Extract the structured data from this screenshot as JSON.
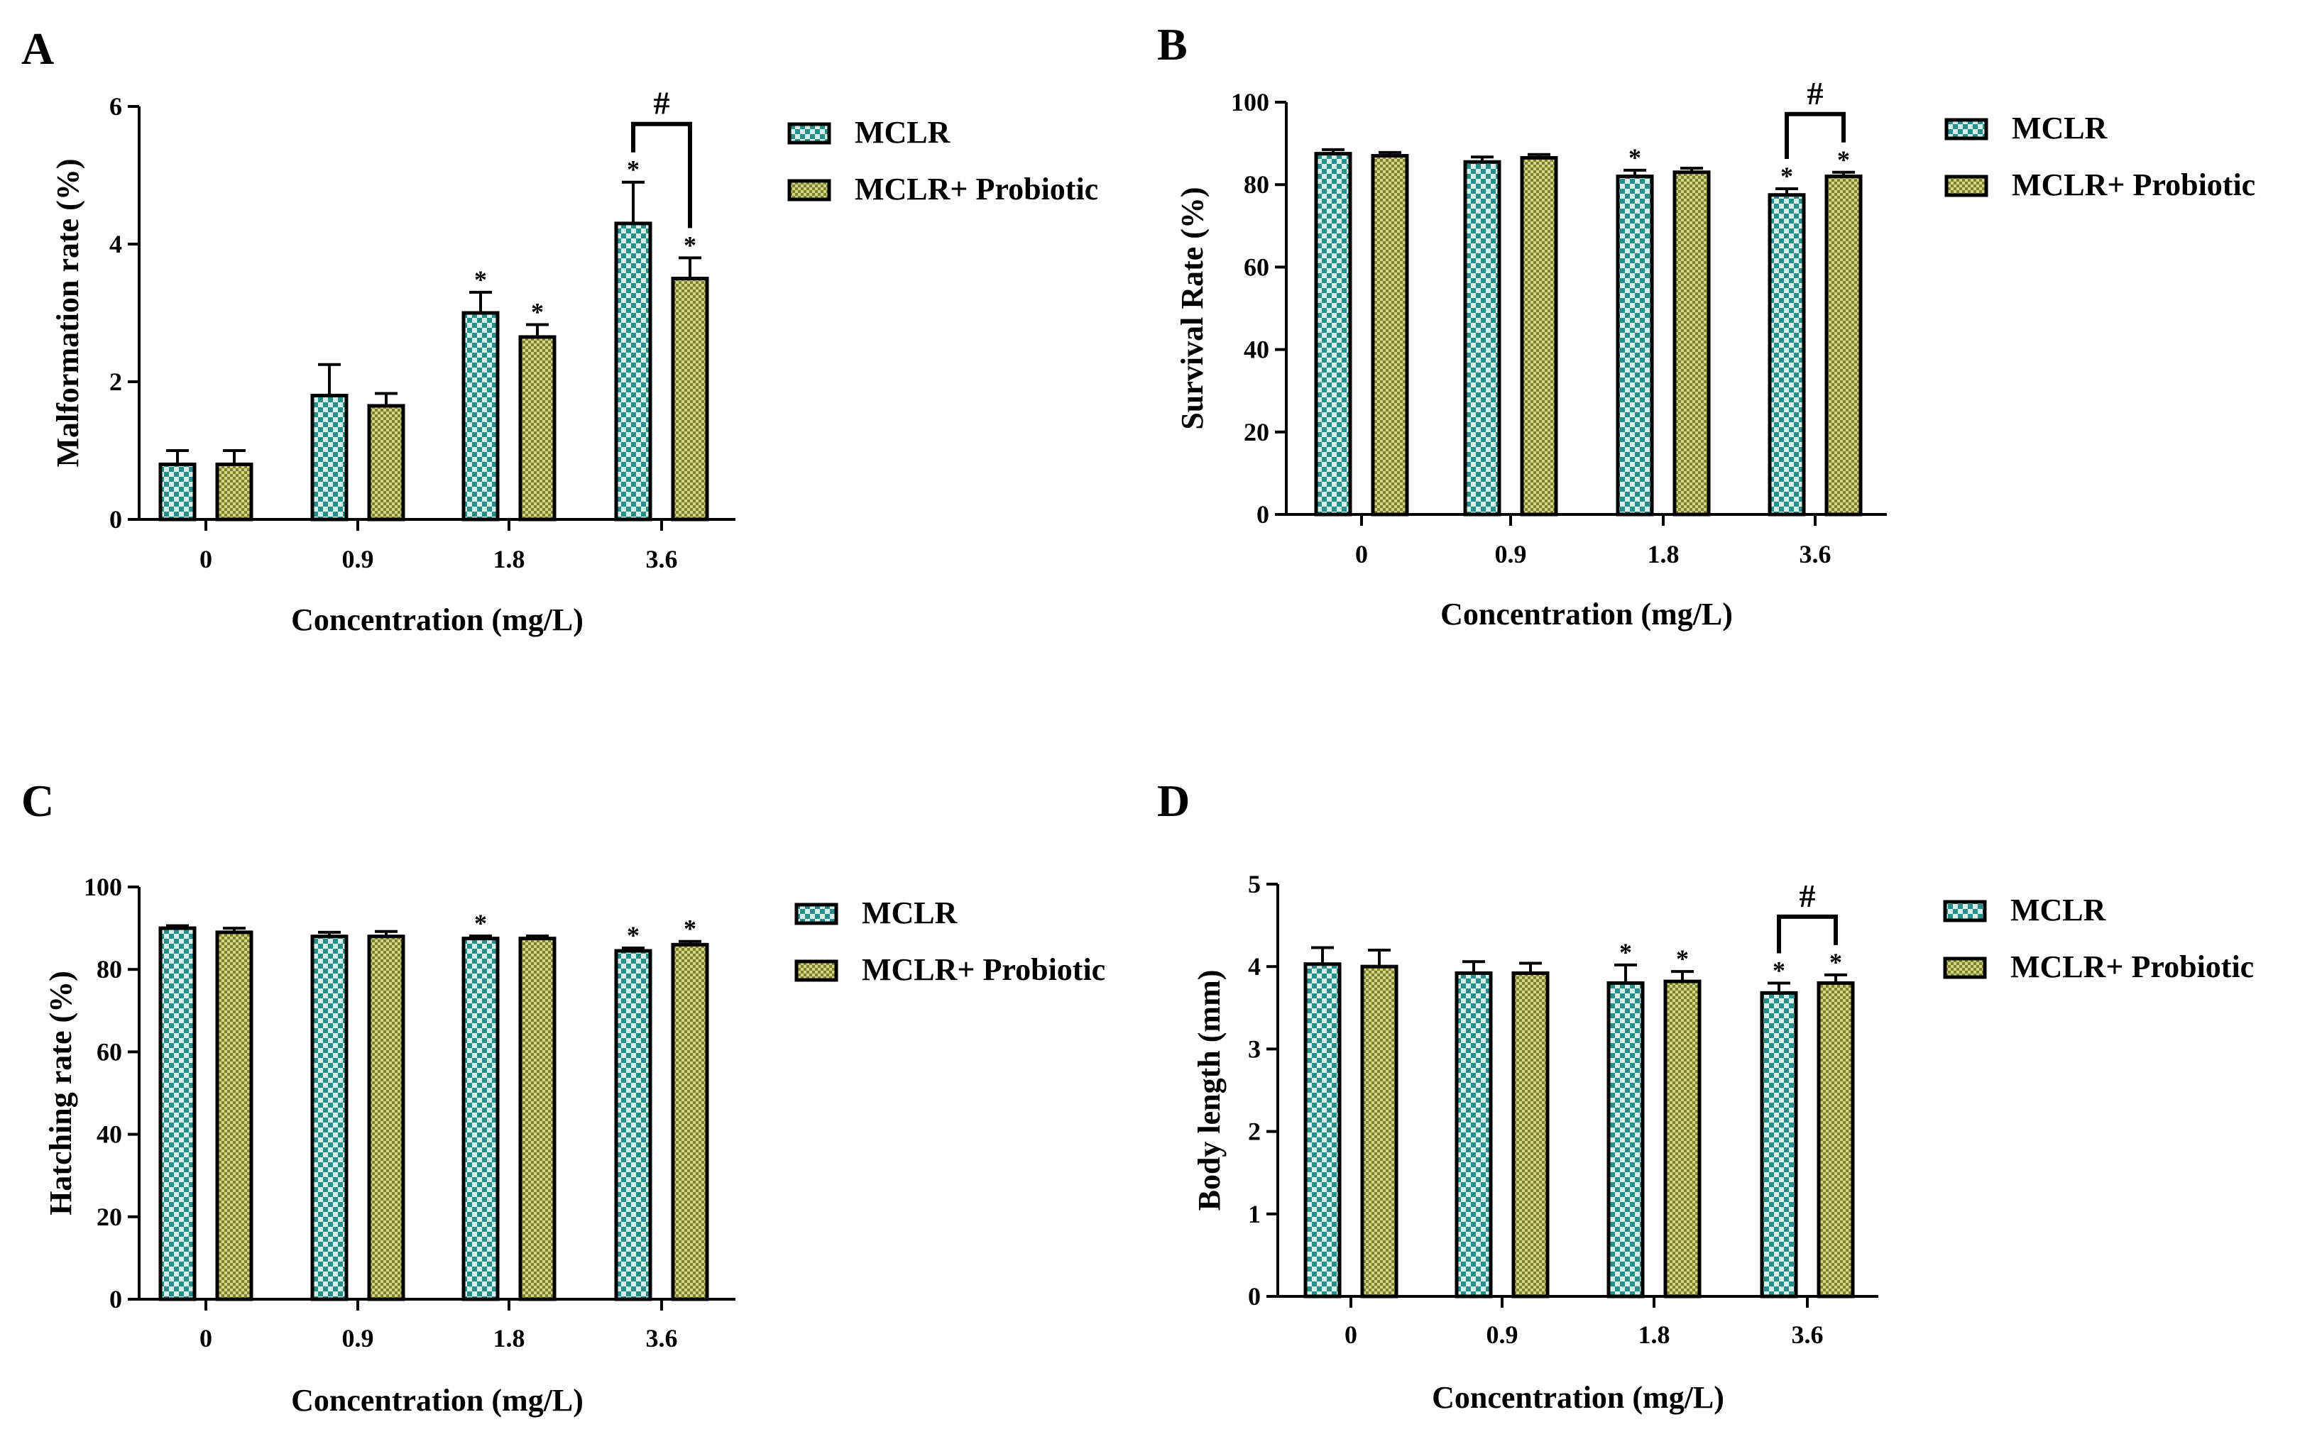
{
  "figure": {
    "colors": {
      "mclr_a": "#27908a",
      "mclr_b": "#d6f0ea",
      "pro_a": "#7f822c",
      "pro_b": "#d4d489",
      "ink": "#000000"
    },
    "icons": {
      "mclr": "teal-checker-swatch",
      "probiotic": "olive-checker-swatch"
    }
  },
  "chart_data": [
    {
      "type": "bar",
      "panel": "A",
      "title": "",
      "xlabel": "Concentration (mg/L)",
      "ylabel": "Malformation rate (%)",
      "ylim": [
        0,
        6
      ],
      "yticks": [
        0,
        2,
        4,
        6
      ],
      "categories": [
        "0",
        "0.9",
        "1.8",
        "3.6"
      ],
      "legend": [
        "MCLR",
        "MCLR+ Probiotic"
      ],
      "series": [
        {
          "name": "MCLR",
          "values": [
            0.8,
            1.8,
            3.0,
            4.3
          ],
          "errors": [
            0.2,
            0.45,
            0.3,
            0.6
          ],
          "sig": [
            "",
            "",
            "*",
            "*"
          ]
        },
        {
          "name": "MCLR+ Probiotic",
          "values": [
            0.8,
            1.65,
            2.65,
            3.5
          ],
          "errors": [
            0.2,
            0.18,
            0.18,
            0.3
          ],
          "sig": [
            "",
            "",
            "*",
            "*"
          ]
        }
      ],
      "hash": {
        "category": 3,
        "label": "#"
      }
    },
    {
      "type": "bar",
      "panel": "B",
      "title": "",
      "xlabel": "Concentration (mg/L)",
      "ylabel": "Survival Rate (%)",
      "ylim": [
        0,
        100
      ],
      "yticks": [
        0,
        20,
        40,
        60,
        80,
        100
      ],
      "categories": [
        "0",
        "0.9",
        "1.8",
        "3.6"
      ],
      "legend": [
        "MCLR",
        "MCLR+ Probiotic"
      ],
      "series": [
        {
          "name": "MCLR",
          "values": [
            87.5,
            85.5,
            82.0,
            77.5
          ],
          "errors": [
            1.0,
            1.2,
            1.5,
            1.5
          ],
          "sig": [
            "",
            "",
            "*",
            "*"
          ]
        },
        {
          "name": "MCLR+ Probiotic",
          "values": [
            87.0,
            86.5,
            83.0,
            82.0
          ],
          "errors": [
            0.8,
            0.8,
            1.0,
            1.0
          ],
          "sig": [
            "",
            "",
            "",
            "*"
          ]
        }
      ],
      "hash": {
        "category": 3,
        "label": "#"
      }
    },
    {
      "type": "bar",
      "panel": "C",
      "title": "",
      "xlabel": "Concentration (mg/L)",
      "ylabel": "Hatching rate (%)",
      "ylim": [
        0,
        100
      ],
      "yticks": [
        0,
        20,
        40,
        60,
        80,
        100
      ],
      "categories": [
        "0",
        "0.9",
        "1.8",
        "3.6"
      ],
      "legend": [
        "MCLR",
        "MCLR+ Probiotic"
      ],
      "series": [
        {
          "name": "MCLR",
          "values": [
            90.0,
            88.0,
            87.5,
            84.5
          ],
          "errors": [
            0.6,
            1.0,
            0.6,
            0.7
          ],
          "sig": [
            "",
            "",
            "*",
            "*"
          ]
        },
        {
          "name": "MCLR+ Probiotic",
          "values": [
            89.0,
            88.0,
            87.5,
            86.0
          ],
          "errors": [
            1.0,
            1.2,
            0.6,
            0.8
          ],
          "sig": [
            "",
            "",
            "",
            "*"
          ]
        }
      ],
      "hash": null
    },
    {
      "type": "bar",
      "panel": "D",
      "title": "",
      "xlabel": "Concentration (mg/L)",
      "ylabel": "Body length (mm)",
      "ylim": [
        0,
        5
      ],
      "yticks": [
        0,
        1,
        2,
        3,
        4,
        5
      ],
      "categories": [
        "0",
        "0.9",
        "1.8",
        "3.6"
      ],
      "legend": [
        "MCLR",
        "MCLR+ Probiotic"
      ],
      "series": [
        {
          "name": "MCLR",
          "values": [
            4.03,
            3.92,
            3.8,
            3.68
          ],
          "errors": [
            0.2,
            0.14,
            0.22,
            0.12
          ],
          "sig": [
            "",
            "",
            "*",
            "*"
          ]
        },
        {
          "name": "MCLR+ Probiotic",
          "values": [
            4.0,
            3.92,
            3.82,
            3.8
          ],
          "errors": [
            0.2,
            0.12,
            0.12,
            0.1
          ],
          "sig": [
            "",
            "",
            "*",
            "*"
          ]
        }
      ],
      "hash": {
        "category": 3,
        "label": "#"
      }
    }
  ]
}
